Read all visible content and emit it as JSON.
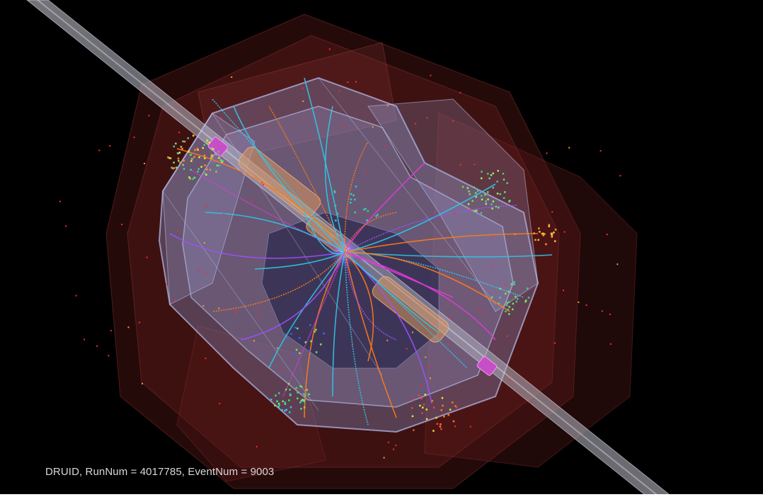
{
  "viewer": {
    "event_label": "DRUID, RunNum = 4017785, EventNum = 9003"
  },
  "colors": {
    "background": "#000000",
    "outer_detector": "#6b1e1e",
    "inner_detector": "#8f9bd6",
    "beam_pipe": "#b9b9c4",
    "cap": "#c64fc8",
    "coil": "#d8965f",
    "label_text": "#d8d8d8"
  }
}
